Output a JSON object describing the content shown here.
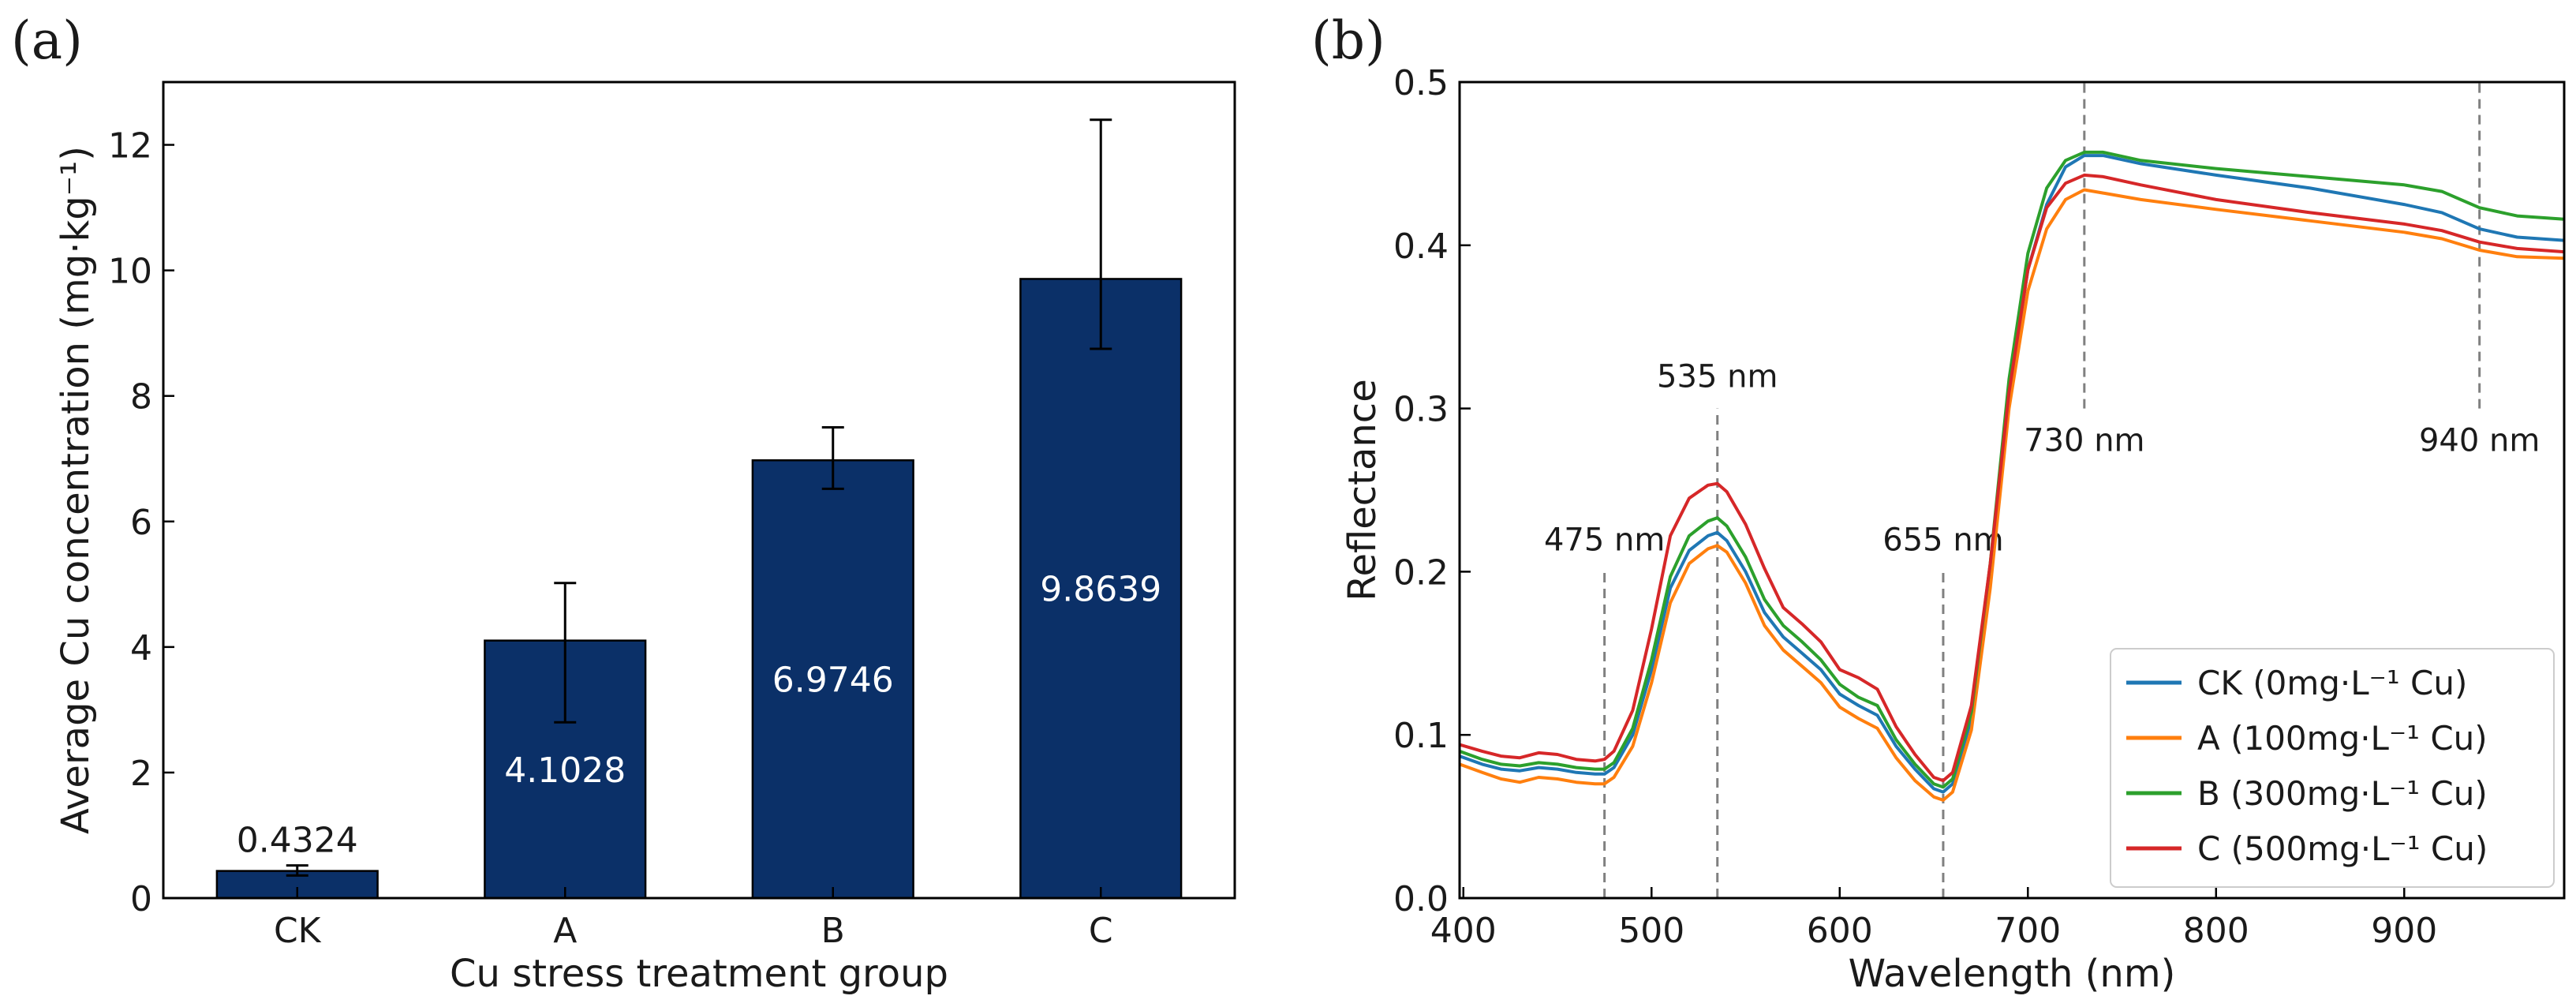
{
  "chart_data": [
    {
      "panel_label": "(a)",
      "type": "bar",
      "title": "",
      "xlabel": "Cu stress treatment group",
      "ylabel": "Average Cu concentration (mg·kg⁻¹)",
      "categories": [
        "CK",
        "A",
        "B",
        "C"
      ],
      "values": [
        0.4324,
        4.1028,
        6.9746,
        9.8639
      ],
      "value_labels": [
        "0.4324",
        "4.1028",
        "6.9746",
        "9.8639"
      ],
      "error_low": [
        0.36,
        2.8,
        6.52,
        8.75
      ],
      "error_high": [
        0.52,
        5.02,
        7.5,
        12.4
      ],
      "ylim": [
        0,
        13
      ],
      "yticks": [
        0,
        2,
        4,
        6,
        8,
        10,
        12
      ],
      "bar_color": "#0b3068",
      "grid": false
    },
    {
      "panel_label": "(b)",
      "type": "line",
      "title": "",
      "xlabel": "Wavelength (nm)",
      "ylabel": "Reflectance",
      "xlim": [
        398,
        985
      ],
      "ylim": [
        0,
        0.5
      ],
      "xticks": [
        400,
        500,
        600,
        700,
        800,
        900
      ],
      "yticks": [
        0.0,
        0.1,
        0.2,
        0.3,
        0.4,
        0.5
      ],
      "legend_position": "lower-right",
      "grid": false,
      "x": [
        398,
        410,
        420,
        430,
        440,
        450,
        460,
        470,
        475,
        480,
        490,
        500,
        510,
        520,
        530,
        535,
        540,
        550,
        560,
        570,
        580,
        590,
        600,
        610,
        620,
        630,
        640,
        650,
        655,
        660,
        670,
        680,
        690,
        700,
        710,
        720,
        730,
        740,
        760,
        800,
        850,
        900,
        920,
        940,
        960,
        985
      ],
      "series": [
        {
          "name": "CK (0mg·L⁻¹ Cu)",
          "color": "#1f77b4",
          "values": [
            0.087,
            0.082,
            0.079,
            0.078,
            0.08,
            0.079,
            0.077,
            0.076,
            0.076,
            0.08,
            0.1,
            0.14,
            0.19,
            0.213,
            0.222,
            0.224,
            0.219,
            0.2,
            0.175,
            0.16,
            0.15,
            0.14,
            0.125,
            0.118,
            0.112,
            0.093,
            0.079,
            0.067,
            0.065,
            0.07,
            0.11,
            0.2,
            0.31,
            0.385,
            0.425,
            0.448,
            0.455,
            0.455,
            0.45,
            0.443,
            0.435,
            0.425,
            0.42,
            0.41,
            0.405,
            0.403
          ]
        },
        {
          "name": "A (100mg·L⁻¹ Cu)",
          "color": "#ff7f0e",
          "values": [
            0.082,
            0.077,
            0.073,
            0.071,
            0.074,
            0.073,
            0.071,
            0.07,
            0.07,
            0.074,
            0.093,
            0.132,
            0.181,
            0.205,
            0.214,
            0.216,
            0.212,
            0.193,
            0.167,
            0.152,
            0.142,
            0.132,
            0.117,
            0.11,
            0.104,
            0.086,
            0.072,
            0.062,
            0.06,
            0.065,
            0.103,
            0.19,
            0.3,
            0.372,
            0.41,
            0.428,
            0.434,
            0.432,
            0.428,
            0.422,
            0.415,
            0.408,
            0.404,
            0.397,
            0.393,
            0.392
          ]
        },
        {
          "name": "B (300mg·L⁻¹ Cu)",
          "color": "#2ca02c",
          "values": [
            0.09,
            0.085,
            0.082,
            0.081,
            0.083,
            0.082,
            0.08,
            0.079,
            0.079,
            0.083,
            0.104,
            0.146,
            0.197,
            0.222,
            0.231,
            0.233,
            0.228,
            0.209,
            0.183,
            0.167,
            0.157,
            0.146,
            0.131,
            0.123,
            0.118,
            0.097,
            0.082,
            0.07,
            0.068,
            0.073,
            0.114,
            0.205,
            0.318,
            0.395,
            0.435,
            0.452,
            0.457,
            0.457,
            0.452,
            0.447,
            0.442,
            0.437,
            0.433,
            0.423,
            0.418,
            0.416
          ]
        },
        {
          "name": "C (500mg·L⁻¹ Cu)",
          "color": "#d62728",
          "values": [
            0.094,
            0.09,
            0.087,
            0.086,
            0.089,
            0.088,
            0.085,
            0.084,
            0.085,
            0.09,
            0.115,
            0.165,
            0.222,
            0.245,
            0.253,
            0.254,
            0.249,
            0.229,
            0.202,
            0.178,
            0.168,
            0.157,
            0.14,
            0.135,
            0.128,
            0.105,
            0.088,
            0.074,
            0.072,
            0.077,
            0.118,
            0.205,
            0.31,
            0.385,
            0.423,
            0.438,
            0.443,
            0.442,
            0.437,
            0.428,
            0.42,
            0.413,
            0.409,
            0.402,
            0.398,
            0.396
          ]
        }
      ],
      "vlines": [
        {
          "x": 475,
          "label": "475 nm",
          "y_start": 0.0,
          "y_end": 0.2,
          "label_y": 0.213,
          "align": "middle"
        },
        {
          "x": 535,
          "label": "535 nm",
          "y_start": 0.0,
          "y_end": 0.3,
          "label_y": 0.313,
          "align": "middle"
        },
        {
          "x": 655,
          "label": "655 nm",
          "y_start": 0.0,
          "y_end": 0.2,
          "label_y": 0.213,
          "align": "middle"
        },
        {
          "x": 730,
          "label": "730 nm",
          "y_start": 0.3,
          "y_end": 0.5,
          "label_y": 0.274,
          "align": "middle"
        },
        {
          "x": 940,
          "label": "940 nm",
          "y_start": 0.3,
          "y_end": 0.5,
          "label_y": 0.274,
          "align": "middle"
        }
      ]
    }
  ]
}
